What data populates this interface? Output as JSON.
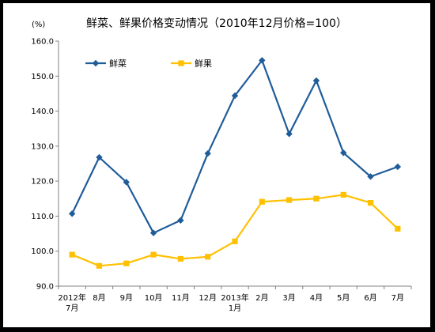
{
  "chart_data": {
    "type": "line",
    "title": "鲜菜、鲜果价格变动情况（2010年12月价格=100）",
    "ylabel": "(%)",
    "xlabel": "",
    "ylim": [
      90,
      160
    ],
    "yticks": [
      "160.0",
      "150.0",
      "140.0",
      "130.0",
      "120.0",
      "110.0",
      "100.0",
      "90.0"
    ],
    "ytick_values": [
      160,
      150,
      140,
      130,
      120,
      110,
      100,
      90
    ],
    "categories": [
      [
        "2012年",
        "7月"
      ],
      [
        "8月"
      ],
      [
        "9月"
      ],
      [
        "10月"
      ],
      [
        "11月"
      ],
      [
        "12月"
      ],
      [
        "2013年",
        "1月"
      ],
      [
        "2月"
      ],
      [
        "3月"
      ],
      [
        "4月"
      ],
      [
        "5月"
      ],
      [
        "6月"
      ],
      [
        "7月"
      ]
    ],
    "series": [
      {
        "name": "鲜菜",
        "color": "#1F5C99",
        "marker": "diamond",
        "values": [
          110.7,
          126.8,
          119.7,
          105.2,
          108.8,
          127.9,
          144.4,
          154.5,
          133.5,
          148.7,
          128.1,
          121.3,
          124.1
        ]
      },
      {
        "name": "鲜果",
        "color": "#FFC000",
        "marker": "square",
        "values": [
          99.0,
          95.8,
          96.5,
          99.0,
          97.8,
          98.4,
          102.8,
          114.1,
          114.6,
          115.0,
          116.1,
          113.8,
          106.4
        ]
      }
    ],
    "legend_position": "top-left",
    "grid": false
  }
}
